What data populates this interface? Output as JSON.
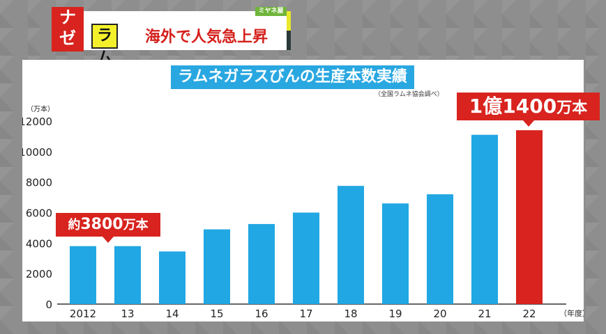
{
  "caption": {
    "badge_top": "ナ",
    "badge_bottom": "ゼ",
    "tag": "ラムネ",
    "title": "海外で人気急上昇",
    "logo": "ミヤネ屋"
  },
  "chart_data": {
    "type": "bar",
    "title": "ラムネガラスびんの生産本数実績",
    "source": "（全国ラムネ協会調べ）",
    "ylabel": "（万本）",
    "xlabel": "（年度）",
    "categories": [
      "2012",
      "13",
      "14",
      "15",
      "16",
      "17",
      "18",
      "19",
      "20",
      "21",
      "22"
    ],
    "values": [
      3800,
      3800,
      3450,
      4900,
      5250,
      6000,
      7750,
      6600,
      7200,
      11100,
      11400
    ],
    "ylim": [
      0,
      12000
    ],
    "yticks": [
      "0",
      "2000",
      "4000",
      "6000",
      "8000",
      "10000",
      "12000"
    ],
    "highlight_index": 10,
    "colors": {
      "bar": "#21a7e3",
      "highlight": "#d8231e"
    },
    "annotations": [
      {
        "target_index": 0,
        "prefix": "約",
        "number": "3800",
        "unit": "万本"
      },
      {
        "target_index": 10,
        "prefix": "",
        "number": "1億1400",
        "unit": "万本"
      }
    ]
  }
}
